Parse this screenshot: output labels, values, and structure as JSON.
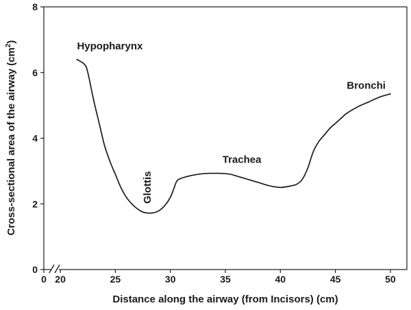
{
  "chart_data": {
    "type": "line",
    "title": "",
    "xlabel": "Distance along the airway (from Incisors) (cm)",
    "ylabel_main": "Cross-sectional area of the airway (cm",
    "ylabel_sup": "2",
    "ylabel_end": ")",
    "xlim": [
      18.5,
      51.5
    ],
    "ylim": [
      0,
      8
    ],
    "x_axis_break": true,
    "x_ticks": [
      {
        "value": 0,
        "label": "0"
      },
      {
        "value": 20,
        "label": "20"
      },
      {
        "value": 25,
        "label": "25"
      },
      {
        "value": 30,
        "label": "30"
      },
      {
        "value": 35,
        "label": "35"
      },
      {
        "value": 40,
        "label": "40"
      },
      {
        "value": 45,
        "label": "45"
      },
      {
        "value": 50,
        "label": "50"
      }
    ],
    "y_ticks": [
      {
        "value": 0,
        "label": "0"
      },
      {
        "value": 2,
        "label": "2"
      },
      {
        "value": 4,
        "label": "4"
      },
      {
        "value": 6,
        "label": "6"
      },
      {
        "value": 8,
        "label": "8"
      }
    ],
    "grid": false,
    "series": [
      {
        "x": [
          21.5,
          22.2,
          22.5,
          23.0,
          23.5,
          24.0,
          24.5,
          25.0,
          25.5,
          26.0,
          26.5,
          27.0,
          27.5,
          28.0,
          28.5,
          29.0,
          29.5,
          30.0,
          30.3,
          30.6,
          31.0,
          31.5,
          32.0,
          32.5,
          33.0,
          33.5,
          34.0,
          34.5,
          35.0,
          35.5,
          36.0,
          37.0,
          38.0,
          39.0,
          40.0,
          41.0,
          41.5,
          42.0,
          42.5,
          43.0,
          43.5,
          44.0,
          44.5,
          45.0,
          45.5,
          46.0,
          47.0,
          48.0,
          49.0,
          50.0
        ],
        "y": [
          6.4,
          6.25,
          6.0,
          5.2,
          4.5,
          3.8,
          3.3,
          2.9,
          2.5,
          2.2,
          2.0,
          1.85,
          1.75,
          1.72,
          1.73,
          1.8,
          1.95,
          2.2,
          2.45,
          2.7,
          2.78,
          2.83,
          2.87,
          2.9,
          2.92,
          2.93,
          2.93,
          2.93,
          2.92,
          2.9,
          2.85,
          2.75,
          2.65,
          2.55,
          2.5,
          2.55,
          2.6,
          2.75,
          3.1,
          3.6,
          3.9,
          4.1,
          4.3,
          4.45,
          4.6,
          4.75,
          4.95,
          5.1,
          5.25,
          5.35
        ]
      }
    ],
    "annotations": [
      {
        "text": "Hypopharynx",
        "x": 24.5,
        "y": 6.7,
        "rotate": false
      },
      {
        "text": "Glottis",
        "x": 28.2,
        "y": 2.5,
        "rotate": true
      },
      {
        "text": "Trachea",
        "x": 36.5,
        "y": 3.25,
        "rotate": false
      },
      {
        "text": "Bronchi",
        "x": 47.8,
        "y": 5.5,
        "rotate": false
      }
    ]
  }
}
